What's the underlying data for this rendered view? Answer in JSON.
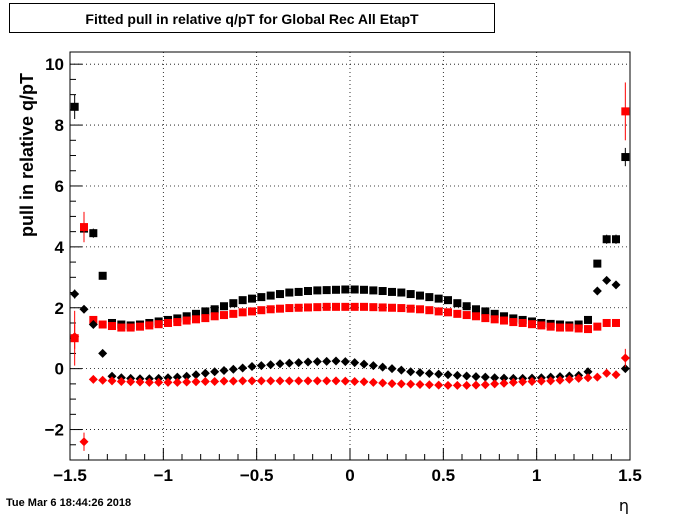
{
  "timestamp": "Tue Mar  6 18:44:26 2018",
  "chart_data": {
    "type": "scatter",
    "title": "Fitted pull in relative q/pT for Global Rec All EtapT",
    "xlabel": "η",
    "ylabel": "pull in relative q/pT",
    "xlim": [
      -1.5,
      1.5
    ],
    "ylim": [
      -3.0,
      10.4
    ],
    "grid": true,
    "xticks": [
      -1.5,
      -1,
      -0.5,
      0,
      0.5,
      1,
      1.5
    ],
    "xtick_labels": [
      "−1.5",
      "−1",
      "−0.5",
      "0",
      "0.5",
      "1",
      "1.5"
    ],
    "yticks": [
      -2,
      0,
      2,
      4,
      6,
      8,
      10
    ],
    "ytick_labels": [
      "−2",
      "0",
      "2",
      "4",
      "6",
      "8",
      "10"
    ],
    "series": [
      {
        "marker": "square",
        "color": "#000000",
        "x": [
          -1.475,
          -1.425,
          -1.375,
          -1.325,
          -1.275,
          -1.225,
          -1.175,
          -1.125,
          -1.075,
          -1.025,
          -0.975,
          -0.925,
          -0.875,
          -0.825,
          -0.775,
          -0.725,
          -0.675,
          -0.625,
          -0.575,
          -0.525,
          -0.475,
          -0.425,
          -0.375,
          -0.325,
          -0.275,
          -0.225,
          -0.175,
          -0.125,
          -0.075,
          -0.025,
          0.025,
          0.075,
          0.125,
          0.175,
          0.225,
          0.275,
          0.325,
          0.375,
          0.425,
          0.475,
          0.525,
          0.575,
          0.625,
          0.675,
          0.725,
          0.775,
          0.825,
          0.875,
          0.925,
          0.975,
          1.025,
          1.075,
          1.125,
          1.175,
          1.225,
          1.275,
          1.325,
          1.375,
          1.425,
          1.475
        ],
        "y": [
          8.6,
          4.6,
          4.45,
          3.05,
          1.5,
          1.45,
          1.42,
          1.45,
          1.5,
          1.55,
          1.6,
          1.65,
          1.72,
          1.8,
          1.88,
          1.95,
          2.05,
          2.15,
          2.25,
          2.3,
          2.35,
          2.4,
          2.45,
          2.5,
          2.52,
          2.55,
          2.57,
          2.58,
          2.59,
          2.6,
          2.6,
          2.59,
          2.57,
          2.55,
          2.52,
          2.5,
          2.45,
          2.4,
          2.35,
          2.3,
          2.25,
          2.15,
          2.05,
          1.95,
          1.88,
          1.8,
          1.72,
          1.65,
          1.6,
          1.55,
          1.5,
          1.47,
          1.45,
          1.42,
          1.45,
          1.6,
          3.45,
          4.25,
          4.25,
          6.95
        ],
        "yerr": [
          0.4,
          0.3,
          0.15,
          0.1,
          0,
          0,
          0,
          0,
          0,
          0,
          0,
          0,
          0,
          0,
          0,
          0,
          0,
          0,
          0,
          0,
          0,
          0,
          0,
          0,
          0,
          0,
          0,
          0,
          0,
          0,
          0,
          0,
          0,
          0,
          0,
          0,
          0,
          0,
          0,
          0,
          0,
          0,
          0,
          0,
          0,
          0,
          0,
          0,
          0,
          0,
          0,
          0,
          0,
          0,
          0,
          0,
          0.1,
          0.15,
          0.15,
          0.3
        ]
      },
      {
        "marker": "square",
        "color": "#ff0000",
        "x": [
          -1.475,
          -1.425,
          -1.375,
          -1.325,
          -1.275,
          -1.225,
          -1.175,
          -1.125,
          -1.075,
          -1.025,
          -0.975,
          -0.925,
          -0.875,
          -0.825,
          -0.775,
          -0.725,
          -0.675,
          -0.625,
          -0.575,
          -0.525,
          -0.475,
          -0.425,
          -0.375,
          -0.325,
          -0.275,
          -0.225,
          -0.175,
          -0.125,
          -0.075,
          -0.025,
          0.025,
          0.075,
          0.125,
          0.175,
          0.225,
          0.275,
          0.325,
          0.375,
          0.425,
          0.475,
          0.525,
          0.575,
          0.625,
          0.675,
          0.725,
          0.775,
          0.825,
          0.875,
          0.925,
          0.975,
          1.025,
          1.075,
          1.125,
          1.175,
          1.225,
          1.275,
          1.325,
          1.375,
          1.425,
          1.475
        ],
        "y": [
          1.0,
          4.65,
          1.6,
          1.45,
          1.4,
          1.35,
          1.35,
          1.38,
          1.42,
          1.46,
          1.5,
          1.53,
          1.58,
          1.62,
          1.66,
          1.72,
          1.76,
          1.8,
          1.85,
          1.88,
          1.92,
          1.95,
          1.97,
          1.99,
          2.0,
          2.01,
          2.02,
          2.03,
          2.03,
          2.03,
          2.03,
          2.03,
          2.02,
          2.01,
          2.0,
          1.99,
          1.97,
          1.95,
          1.92,
          1.88,
          1.85,
          1.8,
          1.76,
          1.72,
          1.66,
          1.62,
          1.58,
          1.53,
          1.5,
          1.46,
          1.42,
          1.38,
          1.35,
          1.35,
          1.32,
          1.3,
          1.38,
          1.5,
          1.5,
          8.45
        ],
        "yerr": [
          0.9,
          0.5,
          0,
          0,
          0,
          0,
          0,
          0,
          0,
          0,
          0,
          0,
          0,
          0,
          0,
          0,
          0,
          0,
          0,
          0,
          0,
          0,
          0,
          0,
          0,
          0,
          0,
          0,
          0,
          0,
          0,
          0,
          0,
          0,
          0,
          0,
          0,
          0,
          0,
          0,
          0,
          0,
          0,
          0,
          0,
          0,
          0,
          0,
          0,
          0,
          0,
          0,
          0,
          0,
          0,
          0,
          0,
          0,
          0,
          0.95
        ]
      },
      {
        "marker": "diamond",
        "color": "#000000",
        "x": [
          -1.475,
          -1.425,
          -1.375,
          -1.325,
          -1.275,
          -1.225,
          -1.175,
          -1.125,
          -1.075,
          -1.025,
          -0.975,
          -0.925,
          -0.875,
          -0.825,
          -0.775,
          -0.725,
          -0.675,
          -0.625,
          -0.575,
          -0.525,
          -0.475,
          -0.425,
          -0.375,
          -0.325,
          -0.275,
          -0.225,
          -0.175,
          -0.125,
          -0.075,
          -0.025,
          0.025,
          0.075,
          0.125,
          0.175,
          0.225,
          0.275,
          0.325,
          0.375,
          0.425,
          0.475,
          0.525,
          0.575,
          0.625,
          0.675,
          0.725,
          0.775,
          0.825,
          0.875,
          0.925,
          0.975,
          1.025,
          1.075,
          1.125,
          1.175,
          1.225,
          1.275,
          1.325,
          1.375,
          1.425,
          1.475
        ],
        "y": [
          2.45,
          1.95,
          1.45,
          0.5,
          -0.25,
          -0.3,
          -0.32,
          -0.33,
          -0.33,
          -0.32,
          -0.3,
          -0.28,
          -0.25,
          -0.2,
          -0.15,
          -0.1,
          -0.06,
          -0.02,
          0.02,
          0.07,
          0.1,
          0.13,
          0.16,
          0.18,
          0.2,
          0.22,
          0.23,
          0.24,
          0.25,
          0.23,
          0.2,
          0.15,
          0.1,
          0.05,
          0.0,
          -0.05,
          -0.1,
          -0.13,
          -0.16,
          -0.18,
          -0.2,
          -0.22,
          -0.24,
          -0.26,
          -0.28,
          -0.3,
          -0.31,
          -0.32,
          -0.32,
          -0.31,
          -0.3,
          -0.28,
          -0.26,
          -0.24,
          -0.22,
          -0.1,
          2.55,
          2.9,
          2.75,
          0.0
        ],
        "yerr": [
          0.15,
          0.1,
          0,
          0,
          0,
          0,
          0,
          0,
          0,
          0,
          0,
          0,
          0,
          0,
          0,
          0,
          0,
          0,
          0,
          0,
          0,
          0,
          0,
          0,
          0,
          0,
          0,
          0,
          0,
          0,
          0,
          0,
          0,
          0,
          0,
          0,
          0,
          0,
          0,
          0,
          0,
          0,
          0,
          0,
          0,
          0,
          0,
          0,
          0,
          0,
          0,
          0,
          0,
          0,
          0,
          0,
          0,
          0,
          0,
          0
        ]
      },
      {
        "marker": "diamond",
        "color": "#ff0000",
        "x": [
          -1.475,
          -1.425,
          -1.375,
          -1.325,
          -1.275,
          -1.225,
          -1.175,
          -1.125,
          -1.075,
          -1.025,
          -0.975,
          -0.925,
          -0.875,
          -0.825,
          -0.775,
          -0.725,
          -0.675,
          -0.625,
          -0.575,
          -0.525,
          -0.475,
          -0.425,
          -0.375,
          -0.325,
          -0.275,
          -0.225,
          -0.175,
          -0.125,
          -0.075,
          -0.025,
          0.025,
          0.075,
          0.125,
          0.175,
          0.225,
          0.275,
          0.325,
          0.375,
          0.425,
          0.475,
          0.525,
          0.575,
          0.625,
          0.675,
          0.725,
          0.775,
          0.825,
          0.875,
          0.925,
          0.975,
          1.025,
          1.075,
          1.125,
          1.175,
          1.225,
          1.275,
          1.325,
          1.375,
          1.425,
          1.475
        ],
        "y": [
          1.05,
          -2.4,
          -0.35,
          -0.38,
          -0.4,
          -0.42,
          -0.43,
          -0.44,
          -0.45,
          -0.45,
          -0.45,
          -0.45,
          -0.44,
          -0.43,
          -0.42,
          -0.42,
          -0.41,
          -0.41,
          -0.4,
          -0.4,
          -0.4,
          -0.4,
          -0.4,
          -0.4,
          -0.4,
          -0.4,
          -0.4,
          -0.4,
          -0.4,
          -0.41,
          -0.42,
          -0.43,
          -0.45,
          -0.47,
          -0.49,
          -0.5,
          -0.51,
          -0.52,
          -0.53,
          -0.54,
          -0.55,
          -0.55,
          -0.55,
          -0.54,
          -0.53,
          -0.5,
          -0.48,
          -0.45,
          -0.43,
          -0.42,
          -0.41,
          -0.4,
          -0.38,
          -0.35,
          -0.32,
          -0.3,
          -0.28,
          -0.15,
          -0.2,
          0.35
        ],
        "yerr": [
          0.4,
          0.3,
          0,
          0,
          0,
          0,
          0,
          0,
          0,
          0,
          0,
          0,
          0,
          0,
          0,
          0,
          0,
          0,
          0,
          0,
          0,
          0,
          0,
          0,
          0,
          0,
          0,
          0,
          0,
          0,
          0,
          0,
          0,
          0,
          0,
          0,
          0,
          0,
          0,
          0,
          0,
          0,
          0,
          0,
          0,
          0,
          0,
          0,
          0,
          0,
          0,
          0,
          0,
          0,
          0,
          0,
          0,
          0,
          0,
          0.3
        ]
      }
    ]
  }
}
